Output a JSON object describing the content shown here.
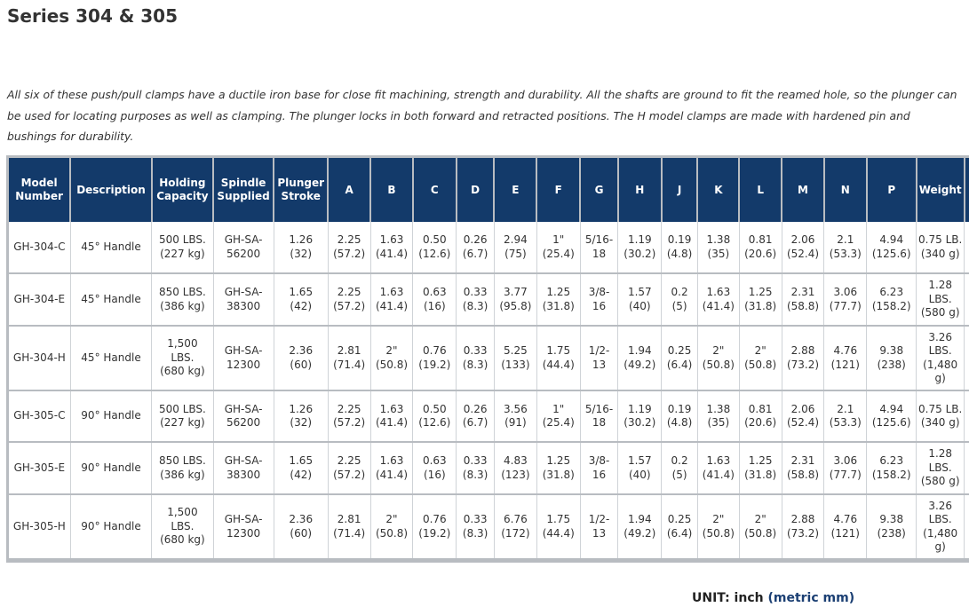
{
  "title": "Series 304 & 305",
  "intro": "All six of these push/pull clamps have a ductile iron base for close fit machining, strength and durability. All the shafts are ground to fit the reamed hole, so the plunger can be used for locating purposes as well as clamping. The plunger locks in both forward and retracted positions. The H model clamps are made with hardened pin and bushings for durability.",
  "headers": [
    "Model Number",
    "Description",
    "Holding Capacity",
    "Spindle Supplied",
    "Plunger Stroke",
    "A",
    "B",
    "C",
    "D",
    "E",
    "F",
    "G",
    "H",
    "J",
    "K",
    "L",
    "M",
    "N",
    "P",
    "Weight"
  ],
  "rows": [
    {
      "model": "GH-304-C",
      "description": "45° Handle",
      "capacity": [
        "500 LBS.",
        "(227 kg)"
      ],
      "spindle": "GH-SA-56200",
      "stroke": [
        "1.26",
        "(32)"
      ],
      "dims": [
        [
          "2.25",
          "(57.2)"
        ],
        [
          "1.63",
          "(41.4)"
        ],
        [
          "0.50",
          "(12.6)"
        ],
        [
          "0.26",
          "(6.7)"
        ],
        [
          "2.94",
          "(75)"
        ],
        [
          "1\"",
          "(25.4)"
        ],
        [
          "5/16-",
          "18"
        ],
        [
          "1.19",
          "(30.2)"
        ],
        [
          "0.19",
          "(4.8)"
        ],
        [
          "1.38",
          "(35)"
        ],
        [
          "0.81",
          "(20.6)"
        ],
        [
          "2.06",
          "(52.4)"
        ],
        [
          "2.1",
          "(53.3)"
        ],
        [
          "4.94",
          "(125.6)"
        ]
      ],
      "weight": [
        "0.75 LB.",
        "(340 g)"
      ]
    },
    {
      "model": "GH-304-E",
      "description": "45° Handle",
      "capacity": [
        "850 LBS.",
        "(386 kg)"
      ],
      "spindle": "GH-SA-38300",
      "stroke": [
        "1.65",
        "(42)"
      ],
      "dims": [
        [
          "2.25",
          "(57.2)"
        ],
        [
          "1.63",
          "(41.4)"
        ],
        [
          "0.63",
          "(16)"
        ],
        [
          "0.33",
          "(8.3)"
        ],
        [
          "3.77",
          "(95.8)"
        ],
        [
          "1.25",
          "(31.8)"
        ],
        [
          "3/8-",
          "16"
        ],
        [
          "1.57",
          "(40)"
        ],
        [
          "0.2",
          "(5)"
        ],
        [
          "1.63",
          "(41.4)"
        ],
        [
          "1.25",
          "(31.8)"
        ],
        [
          "2.31",
          "(58.8)"
        ],
        [
          "3.06",
          "(77.7)"
        ],
        [
          "6.23",
          "(158.2)"
        ]
      ],
      "weight": [
        "1.28",
        "LBS.",
        "(580 g)"
      ]
    },
    {
      "model": "GH-304-H",
      "description": "45° Handle",
      "capacity": [
        "1,500",
        "LBS.",
        "(680 kg)"
      ],
      "spindle": "GH-SA-12300",
      "stroke": [
        "2.36",
        "(60)"
      ],
      "dims": [
        [
          "2.81",
          "(71.4)"
        ],
        [
          "2\"",
          "(50.8)"
        ],
        [
          "0.76",
          "(19.2)"
        ],
        [
          "0.33",
          "(8.3)"
        ],
        [
          "5.25",
          "(133)"
        ],
        [
          "1.75",
          "(44.4)"
        ],
        [
          "1/2-",
          "13"
        ],
        [
          "1.94",
          "(49.2)"
        ],
        [
          "0.25",
          "(6.4)"
        ],
        [
          "2\"",
          "(50.8)"
        ],
        [
          "2\"",
          "(50.8)"
        ],
        [
          "2.88",
          "(73.2)"
        ],
        [
          "4.76",
          "(121)"
        ],
        [
          "9.38",
          "(238)"
        ]
      ],
      "weight": [
        "3.26",
        "LBS.",
        "(1,480",
        "g)"
      ]
    },
    {
      "model": "GH-305-C",
      "description": "90° Handle",
      "capacity": [
        "500 LBS.",
        "(227 kg)"
      ],
      "spindle": "GH-SA-56200",
      "stroke": [
        "1.26",
        "(32)"
      ],
      "dims": [
        [
          "2.25",
          "(57.2)"
        ],
        [
          "1.63",
          "(41.4)"
        ],
        [
          "0.50",
          "(12.6)"
        ],
        [
          "0.26",
          "(6.7)"
        ],
        [
          "3.56",
          "(91)"
        ],
        [
          "1\"",
          "(25.4)"
        ],
        [
          "5/16-",
          "18"
        ],
        [
          "1.19",
          "(30.2)"
        ],
        [
          "0.19",
          "(4.8)"
        ],
        [
          "1.38",
          "(35)"
        ],
        [
          "0.81",
          "(20.6)"
        ],
        [
          "2.06",
          "(52.4)"
        ],
        [
          "2.1",
          "(53.3)"
        ],
        [
          "4.94",
          "(125.6)"
        ]
      ],
      "weight": [
        "0.75 LB.",
        "(340 g)"
      ]
    },
    {
      "model": "GH-305-E",
      "description": "90° Handle",
      "capacity": [
        "850 LBS.",
        "(386 kg)"
      ],
      "spindle": "GH-SA-38300",
      "stroke": [
        "1.65",
        "(42)"
      ],
      "dims": [
        [
          "2.25",
          "(57.2)"
        ],
        [
          "1.63",
          "(41.4)"
        ],
        [
          "0.63",
          "(16)"
        ],
        [
          "0.33",
          "(8.3)"
        ],
        [
          "4.83",
          "(123)"
        ],
        [
          "1.25",
          "(31.8)"
        ],
        [
          "3/8-",
          "16"
        ],
        [
          "1.57",
          "(40)"
        ],
        [
          "0.2",
          "(5)"
        ],
        [
          "1.63",
          "(41.4)"
        ],
        [
          "1.25",
          "(31.8)"
        ],
        [
          "2.31",
          "(58.8)"
        ],
        [
          "3.06",
          "(77.7)"
        ],
        [
          "6.23",
          "(158.2)"
        ]
      ],
      "weight": [
        "1.28",
        "LBS.",
        "(580 g)"
      ]
    },
    {
      "model": "GH-305-H",
      "description": "90° Handle",
      "capacity": [
        "1,500",
        "LBS.",
        "(680 kg)"
      ],
      "spindle": "GH-SA-12300",
      "stroke": [
        "2.36",
        "(60)"
      ],
      "dims": [
        [
          "2.81",
          "(71.4)"
        ],
        [
          "2\"",
          "(50.8)"
        ],
        [
          "0.76",
          "(19.2)"
        ],
        [
          "0.33",
          "(8.3)"
        ],
        [
          "6.76",
          "(172)"
        ],
        [
          "1.75",
          "(44.4)"
        ],
        [
          "1/2-",
          "13"
        ],
        [
          "1.94",
          "(49.2)"
        ],
        [
          "0.25",
          "(6.4)"
        ],
        [
          "2\"",
          "(50.8)"
        ],
        [
          "2\"",
          "(50.8)"
        ],
        [
          "2.88",
          "(73.2)"
        ],
        [
          "4.76",
          "(121)"
        ],
        [
          "9.38",
          "(238)"
        ]
      ],
      "weight": [
        "3.26",
        "LBS.",
        "(1,480",
        "g)"
      ]
    }
  ],
  "unit": {
    "label": "UNIT: inch",
    "metric": "(metric mm)"
  },
  "colors": {
    "header_bg": "#133a6a",
    "header_text": "#ffffff",
    "border": "#b8bcc1",
    "metric_text": "#1b3f73"
  }
}
